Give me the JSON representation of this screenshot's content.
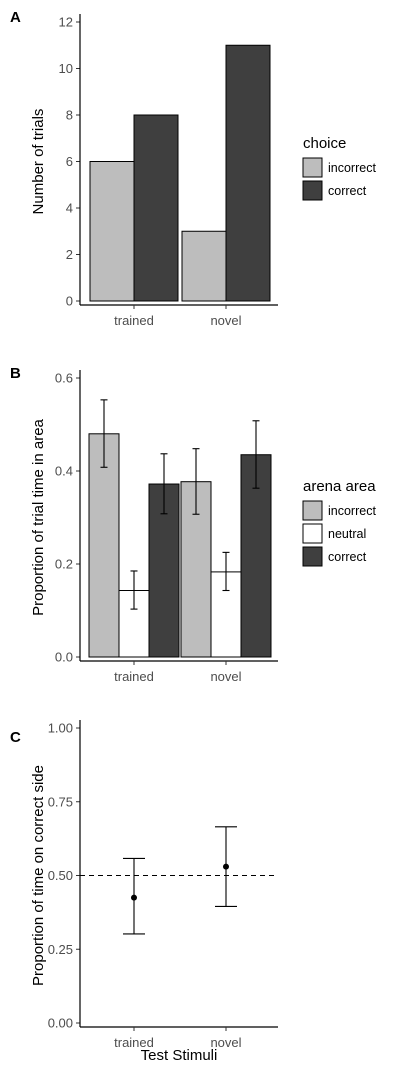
{
  "colors": {
    "incorrect": "#bdbdbd",
    "neutral": "#ffffff",
    "correct": "#3f3f3f",
    "point": "#000000"
  },
  "chart_data": [
    {
      "panel": "A",
      "type": "bar",
      "categories": [
        "trained",
        "novel"
      ],
      "ylabel": "Number of trials",
      "xlabel": "",
      "ylim": [
        0,
        12
      ],
      "yticks": [
        "0",
        "2",
        "4",
        "6",
        "8",
        "10",
        "12"
      ],
      "legend_title": "choice",
      "legend_placement": "right",
      "grid": false,
      "series": [
        {
          "name": "incorrect",
          "values": [
            6,
            3
          ]
        },
        {
          "name": "correct",
          "values": [
            8,
            11
          ]
        }
      ]
    },
    {
      "panel": "B",
      "type": "bar",
      "categories": [
        "trained",
        "novel"
      ],
      "ylabel": "Proportion of trial time in area",
      "xlabel": "",
      "ylim": [
        0,
        0.6
      ],
      "yticks": [
        "0.0",
        "0.2",
        "0.4",
        "0.6"
      ],
      "legend_title": "arena area",
      "legend_placement": "right",
      "grid": false,
      "series": [
        {
          "name": "incorrect",
          "values": [
            0.48,
            0.377
          ],
          "err_low": [
            0.408,
            0.307
          ],
          "err_high": [
            0.553,
            0.448
          ]
        },
        {
          "name": "neutral",
          "values": [
            0.143,
            0.183
          ],
          "err_low": [
            0.103,
            0.143
          ],
          "err_high": [
            0.185,
            0.225
          ]
        },
        {
          "name": "correct",
          "values": [
            0.372,
            0.435
          ],
          "err_low": [
            0.308,
            0.363
          ],
          "err_high": [
            0.437,
            0.508
          ]
        }
      ]
    },
    {
      "panel": "C",
      "type": "scatter",
      "categories": [
        "trained",
        "novel"
      ],
      "ylabel": "Proportion of time on correct side",
      "xlabel": "Test Stimuli",
      "ylim": [
        0,
        1
      ],
      "yticks": [
        "0.00",
        "0.25",
        "0.50",
        "0.75",
        "1.00"
      ],
      "reference_line": 0.5,
      "grid": false,
      "series": [
        {
          "values": [
            0.425,
            0.53
          ],
          "err_low": [
            0.302,
            0.395
          ],
          "err_high": [
            0.558,
            0.665
          ]
        }
      ]
    }
  ]
}
